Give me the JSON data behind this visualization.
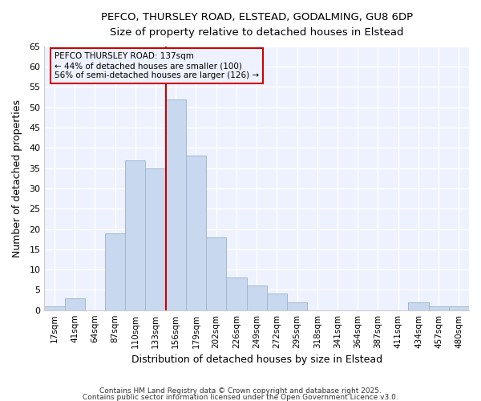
{
  "title_line1": "PEFCO, THURSLEY ROAD, ELSTEAD, GODALMING, GU8 6DP",
  "title_line2": "Size of property relative to detached houses in Elstead",
  "xlabel": "Distribution of detached houses by size in Elstead",
  "ylabel": "Number of detached properties",
  "categories": [
    "17sqm",
    "41sqm",
    "64sqm",
    "87sqm",
    "110sqm",
    "133sqm",
    "156sqm",
    "179sqm",
    "202sqm",
    "226sqm",
    "249sqm",
    "272sqm",
    "295sqm",
    "318sqm",
    "341sqm",
    "364sqm",
    "387sqm",
    "411sqm",
    "434sqm",
    "457sqm",
    "480sqm"
  ],
  "values": [
    1,
    3,
    0,
    19,
    37,
    35,
    52,
    38,
    18,
    8,
    6,
    4,
    2,
    0,
    0,
    0,
    0,
    0,
    2,
    1,
    1
  ],
  "bar_color": "#c8d8ee",
  "bar_edge_color": "#a0b8d0",
  "ref_line_x": 5.5,
  "ref_line_color": "#cc0000",
  "annotation_title": "PEFCO THURSLEY ROAD: 137sqm",
  "annotation_line2": "← 44% of detached houses are smaller (100)",
  "annotation_line3": "56% of semi-detached houses are larger (126) →",
  "annotation_box_color": "#cc0000",
  "ylim": [
    0,
    65
  ],
  "yticks": [
    0,
    5,
    10,
    15,
    20,
    25,
    30,
    35,
    40,
    45,
    50,
    55,
    60,
    65
  ],
  "background_color": "#ffffff",
  "plot_bg_color": "#eef2ff",
  "grid_color": "#ffffff",
  "footer_line1": "Contains HM Land Registry data © Crown copyright and database right 2025.",
  "footer_line2": "Contains public sector information licensed under the Open Government Licence v3.0."
}
